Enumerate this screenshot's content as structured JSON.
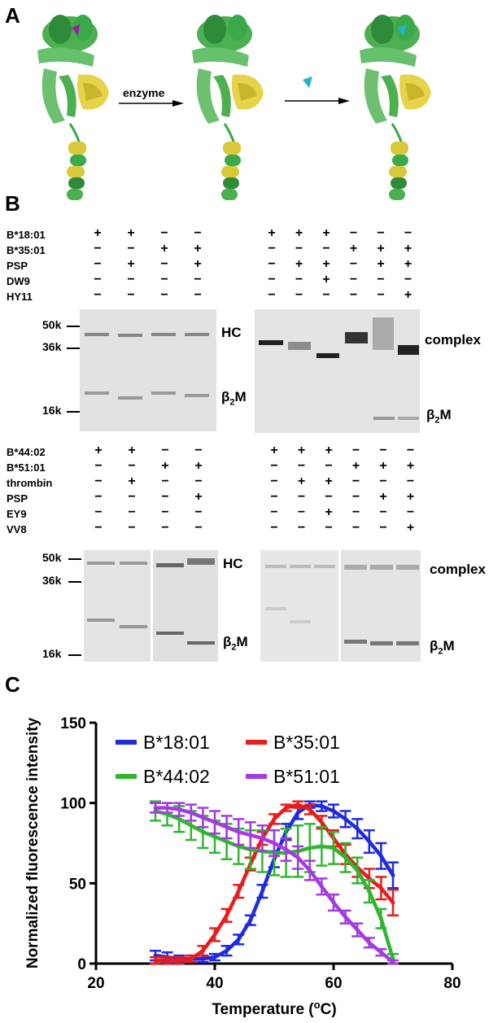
{
  "panelA": {
    "letter": "A",
    "arrow1_label": "enzyme"
  },
  "panelB": {
    "letter": "B",
    "top": {
      "left_rows": [
        {
          "label": "B*18:01",
          "signs": [
            "+",
            "+",
            "−",
            "−"
          ]
        },
        {
          "label": "B*35:01",
          "signs": [
            "−",
            "−",
            "+",
            "+"
          ]
        },
        {
          "label": "PSP",
          "signs": [
            "−",
            "+",
            "−",
            "+"
          ]
        },
        {
          "label": "DW9",
          "signs": [
            "−",
            "−",
            "−",
            "−"
          ]
        },
        {
          "label": "HY11",
          "signs": [
            "−",
            "−",
            "−",
            "−"
          ]
        }
      ],
      "right_rows": [
        {
          "signs": [
            "+",
            "+",
            "+",
            "−",
            "−",
            "−"
          ]
        },
        {
          "signs": [
            "−",
            "−",
            "−",
            "+",
            "+",
            "+"
          ]
        },
        {
          "signs": [
            "−",
            "+",
            "+",
            "−",
            "+",
            "+"
          ]
        },
        {
          "signs": [
            "−",
            "−",
            "+",
            "−",
            "−",
            "−"
          ]
        },
        {
          "signs": [
            "−",
            "−",
            "−",
            "−",
            "−",
            "+"
          ]
        }
      ],
      "mw_markers": [
        "50k",
        "36k",
        "16k"
      ],
      "left_band_labels": [
        "HC",
        "β2M"
      ],
      "right_band_labels": [
        "complex",
        "β2M"
      ]
    },
    "bottom": {
      "left_rows": [
        {
          "label": "B*44:02",
          "signs": [
            "+",
            "+",
            "−",
            "−"
          ]
        },
        {
          "label": "B*51:01",
          "signs": [
            "−",
            "−",
            "+",
            "+"
          ]
        },
        {
          "label": "thrombin",
          "signs": [
            "−",
            "+",
            "−",
            "−"
          ]
        },
        {
          "label": "PSP",
          "signs": [
            "−",
            "−",
            "−",
            "+"
          ]
        },
        {
          "label": "EY9",
          "signs": [
            "−",
            "−",
            "−",
            "−"
          ]
        },
        {
          "label": "VV8",
          "signs": [
            "−",
            "−",
            "−",
            "−"
          ]
        }
      ],
      "right_rows": [
        {
          "signs": [
            "+",
            "+",
            "+",
            "−",
            "−",
            "−"
          ]
        },
        {
          "signs": [
            "−",
            "−",
            "−",
            "+",
            "+",
            "+"
          ]
        },
        {
          "signs": [
            "−",
            "+",
            "+",
            "−",
            "−",
            "−"
          ]
        },
        {
          "signs": [
            "−",
            "−",
            "−",
            "−",
            "+",
            "+"
          ]
        },
        {
          "signs": [
            "−",
            "−",
            "+",
            "−",
            "−",
            "−"
          ]
        },
        {
          "signs": [
            "−",
            "−",
            "−",
            "−",
            "−",
            "+"
          ]
        }
      ],
      "mw_markers": [
        "50k",
        "36k",
        "16k"
      ],
      "left_band_labels": [
        "HC",
        "β2M"
      ],
      "right_band_labels": [
        "complex",
        "β2M"
      ]
    }
  },
  "panelC": {
    "letter": "C",
    "chart_data": {
      "type": "line",
      "xlabel": "Temperature (oC)",
      "ylabel": "Normalized fluorescence intensity",
      "xlim": [
        20,
        80
      ],
      "ylim": [
        0,
        150
      ],
      "xticks": [
        20,
        40,
        60,
        80
      ],
      "yticks": [
        0,
        50,
        100,
        150
      ],
      "legend": "top",
      "series": [
        {
          "name": "B*18:01",
          "color": "#1f2be0",
          "x": [
            30,
            32,
            34,
            36,
            38,
            40,
            42,
            44,
            46,
            48,
            50,
            52,
            54,
            56,
            58,
            60,
            62,
            64,
            66,
            68,
            70
          ],
          "y": [
            5,
            4,
            3,
            3,
            3,
            4,
            8,
            15,
            27,
            45,
            65,
            82,
            94,
            99,
            98,
            95,
            90,
            84,
            76,
            67,
            55
          ],
          "err": [
            3,
            3,
            2,
            2,
            2,
            2,
            3,
            3,
            3,
            4,
            5,
            5,
            4,
            2,
            3,
            4,
            5,
            6,
            7,
            8,
            8
          ]
        },
        {
          "name": "B*35:01",
          "color": "#e81c1c",
          "x": [
            30,
            32,
            34,
            36,
            38,
            40,
            42,
            44,
            46,
            48,
            50,
            52,
            54,
            56,
            58,
            60,
            62,
            64,
            66,
            68,
            70
          ],
          "y": [
            2,
            2,
            2,
            3,
            8,
            18,
            30,
            45,
            62,
            78,
            90,
            97,
            99,
            96,
            88,
            78,
            68,
            60,
            53,
            47,
            38
          ],
          "err": [
            2,
            2,
            2,
            2,
            3,
            4,
            4,
            4,
            4,
            4,
            3,
            2,
            2,
            3,
            4,
            5,
            6,
            6,
            6,
            7,
            8
          ]
        },
        {
          "name": "B*44:02",
          "color": "#2fb52f",
          "x": [
            30,
            32,
            34,
            36,
            38,
            40,
            42,
            44,
            46,
            48,
            50,
            52,
            54,
            56,
            58,
            60,
            62,
            64,
            66,
            68,
            70
          ],
          "y": [
            95,
            93,
            90,
            86,
            82,
            79,
            76,
            73,
            71,
            70,
            69,
            69,
            70,
            72,
            73,
            72,
            66,
            58,
            45,
            28,
            3
          ],
          "err": [
            6,
            7,
            8,
            9,
            10,
            10,
            11,
            11,
            12,
            13,
            14,
            15,
            16,
            15,
            12,
            10,
            9,
            8,
            7,
            6,
            3
          ]
        },
        {
          "name": "B*51:01",
          "color": "#a23be0",
          "x": [
            30,
            32,
            34,
            36,
            38,
            40,
            42,
            44,
            46,
            48,
            50,
            52,
            54,
            56,
            58,
            60,
            62,
            64,
            66,
            68,
            70
          ],
          "y": [
            97,
            97,
            96,
            94,
            91,
            88,
            85,
            82,
            80,
            78,
            75,
            71,
            66,
            58,
            48,
            38,
            29,
            21,
            13,
            7,
            1
          ],
          "err": [
            3,
            3,
            4,
            5,
            6,
            7,
            7,
            8,
            8,
            8,
            8,
            7,
            7,
            6,
            5,
            5,
            4,
            4,
            3,
            2,
            1
          ]
        }
      ]
    }
  }
}
